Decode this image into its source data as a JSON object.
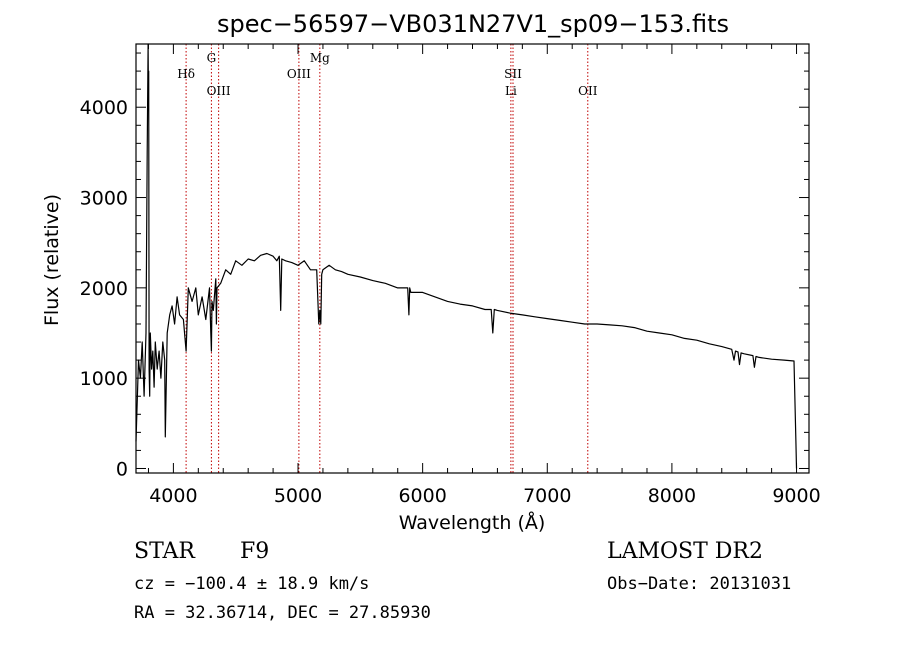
{
  "chart_data": {
    "type": "line",
    "title": "spec−56597−VB031N27V1_sp09−153.fits",
    "xlabel": "Wavelength (Å)",
    "ylabel": "Flux (relative)",
    "xlim": [
      3700,
      9100
    ],
    "ylim": [
      -50,
      4700
    ],
    "xticks": [
      4000,
      5000,
      6000,
      7000,
      8000,
      9000
    ],
    "yticks": [
      0,
      1000,
      2000,
      3000,
      4000
    ],
    "grid": false,
    "series": [
      {
        "name": "flux",
        "x": [
          3700,
          3720,
          3735,
          3750,
          3765,
          3780,
          3790,
          3797,
          3800,
          3802,
          3805,
          3810,
          3815,
          3825,
          3835,
          3845,
          3855,
          3870,
          3885,
          3900,
          3915,
          3930,
          3935,
          3950,
          3970,
          3990,
          4010,
          4030,
          4050,
          4080,
          4102,
          4120,
          4150,
          4180,
          4200,
          4230,
          4260,
          4290,
          4300,
          4305,
          4310,
          4320,
          4340,
          4345,
          4350,
          4380,
          4420,
          4460,
          4500,
          4550,
          4600,
          4650,
          4700,
          4750,
          4800,
          4830,
          4850,
          4861,
          4870,
          4900,
          4950,
          5000,
          5050,
          5100,
          5150,
          5167,
          5175,
          5183,
          5190,
          5200,
          5250,
          5300,
          5350,
          5400,
          5500,
          5600,
          5700,
          5800,
          5880,
          5890,
          5896,
          5905,
          6000,
          6100,
          6200,
          6300,
          6400,
          6500,
          6550,
          6563,
          6575,
          6600,
          6700,
          6800,
          6900,
          7000,
          7100,
          7200,
          7300,
          7400,
          7500,
          7600,
          7700,
          7800,
          7900,
          8000,
          8100,
          8200,
          8300,
          8400,
          8480,
          8498,
          8510,
          8530,
          8542,
          8555,
          8580,
          8650,
          8662,
          8675,
          8700,
          8800,
          8900,
          8980,
          8995,
          9000
        ],
        "y": [
          300,
          1200,
          1000,
          1400,
          800,
          1500,
          3500,
          4700,
          4000,
          4400,
          1100,
          800,
          1500,
          1100,
          1300,
          900,
          1400,
          1100,
          1300,
          1000,
          1400,
          1200,
          350,
          1500,
          1700,
          1800,
          1600,
          1900,
          1700,
          1650,
          1300,
          2000,
          1850,
          2000,
          1700,
          1900,
          1650,
          2000,
          1500,
          1300,
          1850,
          1750,
          2100,
          1600,
          2000,
          2050,
          2200,
          2150,
          2300,
          2250,
          2320,
          2300,
          2360,
          2380,
          2350,
          2300,
          2350,
          1750,
          2320,
          2300,
          2280,
          2250,
          2300,
          2200,
          2200,
          1600,
          1750,
          1600,
          2150,
          2200,
          2250,
          2200,
          2180,
          2150,
          2120,
          2080,
          2050,
          2000,
          2000,
          1700,
          2000,
          1950,
          1950,
          1900,
          1850,
          1820,
          1800,
          1760,
          1760,
          1500,
          1760,
          1750,
          1720,
          1700,
          1680,
          1660,
          1640,
          1620,
          1600,
          1600,
          1590,
          1580,
          1560,
          1520,
          1500,
          1480,
          1440,
          1420,
          1380,
          1350,
          1320,
          1200,
          1300,
          1290,
          1150,
          1280,
          1270,
          1250,
          1120,
          1240,
          1230,
          1210,
          1200,
          1190,
          300,
          0
        ]
      }
    ],
    "spectral_lines": [
      {
        "label": "Hδ",
        "x": 4102,
        "label_row": "upper"
      },
      {
        "label": "G",
        "x": 4305,
        "label_row": "top"
      },
      {
        "label": "OIII",
        "x": 4363,
        "label_row": "lower"
      },
      {
        "label": "OIII",
        "x": 5007,
        "label_row": "upper"
      },
      {
        "label": "Mg",
        "x": 5175,
        "label_row": "top"
      },
      {
        "label": "Li",
        "x": 6708,
        "label_row": "lower"
      },
      {
        "label": "OII",
        "x": 7325,
        "label_row": "lower"
      },
      {
        "label": "SII",
        "x": 6725,
        "label_row": "upper"
      }
    ]
  },
  "info": {
    "object_class": "STAR",
    "subclass": "F9",
    "survey": "LAMOST DR2",
    "cz": "cz = −100.4 ± 18.9 km/s",
    "obs_date": "Obs−Date: 20131031",
    "radec": "RA =  32.36714, DEC =  27.85930"
  },
  "colors": {
    "line": "#000000",
    "marker_lines": "#c00000",
    "background": "#ffffff"
  }
}
